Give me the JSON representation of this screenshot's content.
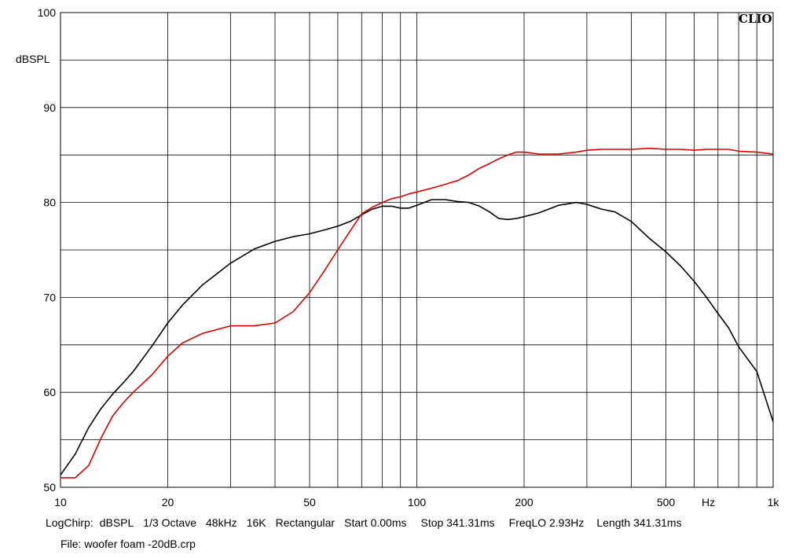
{
  "brand": "CLIO",
  "footer": {
    "items": [
      "LogChirp:",
      "dBSPL",
      "1/3 Octave",
      "48kHz",
      "16K",
      "Rectangular",
      "Start 0.00ms",
      "Stop 341.31ms",
      "FreqLO 2.93Hz",
      "Length 341.31ms"
    ],
    "file": "File: woofer foam -20dB.crp"
  },
  "chart_data": {
    "type": "line",
    "title": "",
    "xlabel": "Hz",
    "ylabel": "dBSPL",
    "x_scale": "log",
    "xlim": [
      10,
      1000
    ],
    "ylim": [
      50,
      100
    ],
    "grid": true,
    "x_ticks": [
      {
        "value": 10,
        "label": "10"
      },
      {
        "value": 20,
        "label": "20"
      },
      {
        "value": 50,
        "label": "50"
      },
      {
        "value": 100,
        "label": "100"
      },
      {
        "value": 200,
        "label": "200"
      },
      {
        "value": 500,
        "label": "500"
      },
      {
        "value": 1000,
        "label": "1k"
      }
    ],
    "y_ticks": [
      {
        "value": 50,
        "label": "50"
      },
      {
        "value": 60,
        "label": "60"
      },
      {
        "value": 70,
        "label": "70"
      },
      {
        "value": 80,
        "label": "80"
      },
      {
        "value": 90,
        "label": "90"
      },
      {
        "value": 100,
        "label": "100"
      }
    ],
    "series": [
      {
        "color": "#000000",
        "x": [
          10,
          11,
          12,
          13,
          14,
          15,
          16,
          18,
          20,
          22,
          25,
          30,
          35,
          40,
          45,
          50,
          55,
          60,
          65,
          70,
          75,
          80,
          85,
          90,
          95,
          100,
          110,
          120,
          130,
          140,
          150,
          160,
          170,
          180,
          190,
          200,
          220,
          250,
          280,
          300,
          330,
          360,
          400,
          450,
          500,
          550,
          600,
          650,
          700,
          750,
          800,
          900,
          1000
        ],
        "y": [
          51.3,
          53.5,
          56.3,
          58.3,
          59.8,
          61.0,
          62.2,
          64.8,
          67.3,
          69.2,
          71.3,
          73.6,
          75.1,
          75.9,
          76.4,
          76.7,
          77.1,
          77.5,
          78.0,
          78.7,
          79.3,
          79.6,
          79.6,
          79.4,
          79.4,
          79.7,
          80.3,
          80.3,
          80.1,
          80.0,
          79.6,
          79.0,
          78.3,
          78.2,
          78.3,
          78.5,
          78.9,
          79.7,
          80.0,
          79.8,
          79.3,
          79.0,
          78.0,
          76.2,
          74.8,
          73.3,
          71.7,
          70.0,
          68.3,
          66.8,
          64.8,
          62.2,
          56.9
        ]
      },
      {
        "color": "#dd0000",
        "x": [
          10,
          11,
          12,
          13,
          14,
          15,
          16,
          18,
          20,
          22,
          25,
          30,
          35,
          40,
          45,
          50,
          55,
          60,
          65,
          70,
          75,
          80,
          85,
          90,
          95,
          100,
          110,
          120,
          130,
          140,
          150,
          160,
          170,
          180,
          190,
          200,
          220,
          250,
          280,
          300,
          330,
          360,
          400,
          450,
          500,
          550,
          600,
          650,
          700,
          750,
          800,
          900,
          1000
        ],
        "y": [
          51.0,
          51.0,
          52.3,
          55.2,
          57.5,
          58.9,
          60.0,
          61.8,
          63.8,
          65.2,
          66.2,
          67.0,
          67.0,
          67.3,
          68.5,
          70.5,
          72.8,
          75.0,
          77.0,
          78.8,
          79.5,
          80.0,
          80.4,
          80.6,
          80.9,
          81.1,
          81.5,
          81.9,
          82.3,
          82.9,
          83.6,
          84.1,
          84.6,
          85.0,
          85.3,
          85.3,
          85.1,
          85.1,
          85.3,
          85.5,
          85.6,
          85.6,
          85.6,
          85.7,
          85.6,
          85.6,
          85.5,
          85.6,
          85.6,
          85.6,
          85.4,
          85.3,
          85.1
        ]
      }
    ]
  }
}
